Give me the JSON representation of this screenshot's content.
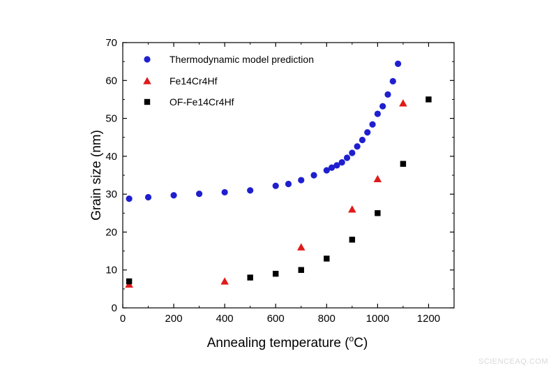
{
  "chart_data": {
    "type": "scatter",
    "xlabel": "Annealing temperature (",
    "xlabel_unit_sup": "o",
    "xlabel_unit": "C)",
    "ylabel": "Grain size (nm)",
    "xlim": [
      0,
      1300
    ],
    "ylim": [
      0,
      70
    ],
    "x_ticks": [
      0,
      200,
      400,
      600,
      800,
      1000,
      1200
    ],
    "y_ticks": [
      0,
      10,
      20,
      30,
      40,
      50,
      60,
      70
    ],
    "grid": false,
    "legend_position": "top-left",
    "series": [
      {
        "name": "Thermodynamic model prediction",
        "marker": "circle",
        "color": "#1f1fcf",
        "x": [
          25,
          100,
          200,
          300,
          400,
          500,
          600,
          650,
          700,
          750,
          800,
          820,
          840,
          860,
          880,
          900,
          920,
          940,
          960,
          980,
          1000,
          1020,
          1040,
          1060,
          1080
        ],
        "y": [
          28.8,
          29.2,
          29.7,
          30.1,
          30.5,
          31.0,
          32.2,
          32.7,
          33.7,
          35.0,
          36.3,
          37.0,
          37.6,
          38.4,
          39.6,
          40.9,
          42.6,
          44.3,
          46.3,
          48.4,
          51.2,
          53.2,
          56.3,
          59.8,
          64.4
        ]
      },
      {
        "name": "Fe14Cr4Hf",
        "marker": "triangle",
        "color": "#e01a1a",
        "x": [
          25,
          400,
          700,
          900,
          1000,
          1100
        ],
        "y": [
          6.2,
          7.0,
          16.0,
          26.0,
          34.0,
          54.0
        ]
      },
      {
        "name": "OF-Fe14Cr4Hf",
        "marker": "square",
        "color": "#000000",
        "x": [
          25,
          500,
          600,
          700,
          800,
          900,
          1000,
          1100,
          1200
        ],
        "y": [
          7.0,
          8.0,
          9.0,
          10.0,
          13.0,
          18.0,
          25.0,
          38.0,
          55.0
        ]
      }
    ]
  },
  "watermark": "SCIENCEAQ.COM"
}
